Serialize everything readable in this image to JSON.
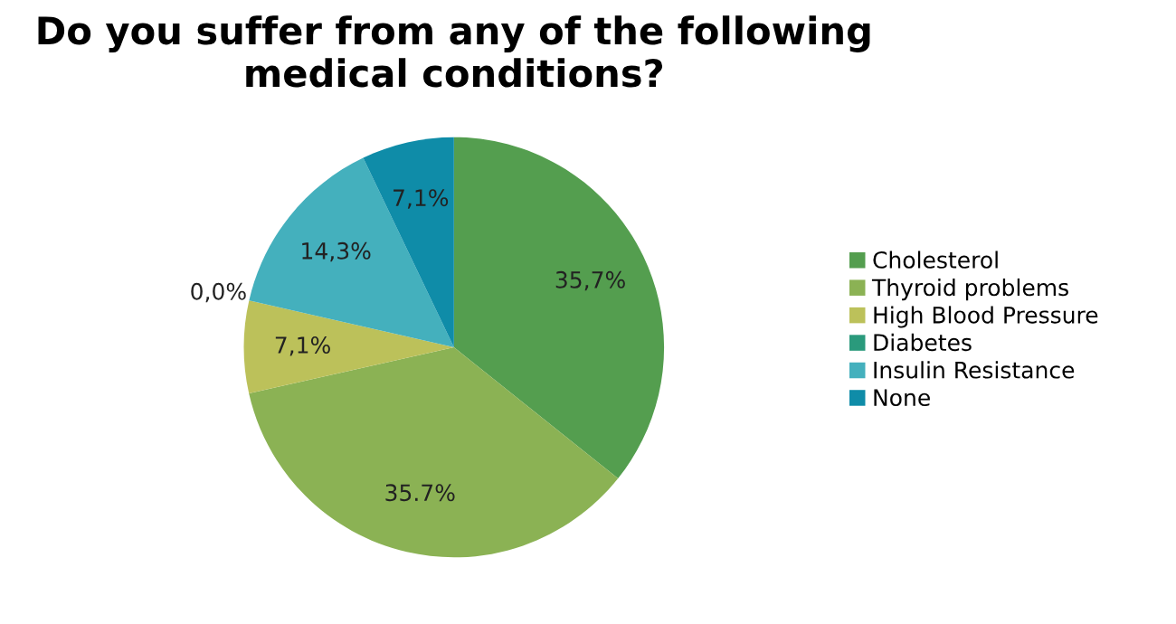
{
  "chart_data": {
    "type": "pie",
    "title": "Do you suffer from any of the following\nmedical conditions?",
    "categories": [
      "Cholesterol",
      "Thyroid problems",
      "High Blood Pressure",
      "Diabetes",
      "Insulin Resistance",
      "None"
    ],
    "values": [
      35.7,
      35.7,
      7.1,
      0.0,
      14.3,
      7.1
    ],
    "value_labels": [
      "35,7%",
      "35.7%",
      "7,1%",
      "0,0%",
      "14,3%",
      "7,1%"
    ],
    "colors": [
      "#549e4f",
      "#8bb254",
      "#bcc15a",
      "#2a9a7c",
      "#44b0bd",
      "#0f8ca8"
    ],
    "legend": "right"
  }
}
